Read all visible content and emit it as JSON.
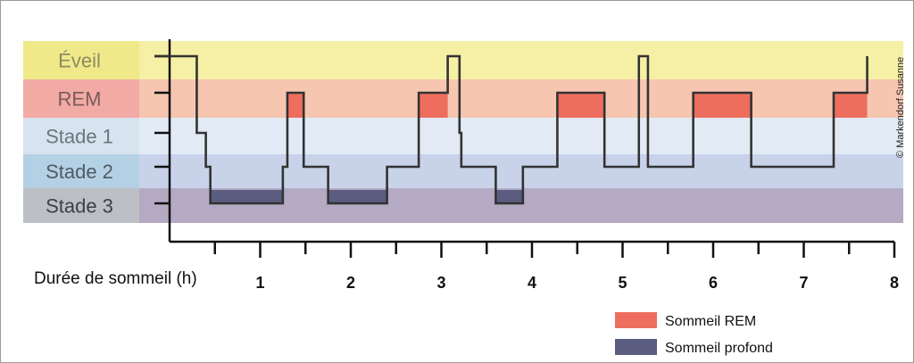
{
  "chart_data": {
    "type": "line",
    "xlabel": "Durée de sommeil (h)",
    "xlim": [
      0,
      8
    ],
    "x_ticks": [
      "1",
      "2",
      "3",
      "4",
      "5",
      "6",
      "7",
      "8"
    ],
    "stages": [
      {
        "key": "eveil",
        "label": "Éveil",
        "band_color": "#f5f0a6",
        "label_bg": "#efe98a",
        "label_color": "#8b8b62"
      },
      {
        "key": "rem",
        "label": "REM",
        "band_color": "#f6c6b0",
        "label_bg": "#f2aaa5",
        "label_color": "#7a5a58"
      },
      {
        "key": "stade1",
        "label": "Stade 1",
        "band_color": "#e2ebf5",
        "label_bg": "#d7e3ef",
        "label_color": "#6b7580"
      },
      {
        "key": "stade2",
        "label": "Stade 2",
        "band_color": "#c8d3ea",
        "label_bg": "#b4d0e4",
        "label_color": "#4f5b66"
      },
      {
        "key": "stade3",
        "label": "Stade 3",
        "band_color": "#b5aac3",
        "label_bg": "#bcc0c6",
        "label_color": "#3c3f44"
      }
    ],
    "hypnogram": [
      [
        -0.2,
        "eveil"
      ],
      [
        0.3,
        "stade1"
      ],
      [
        0.4,
        "stade2"
      ],
      [
        0.45,
        "stade3"
      ],
      [
        1.25,
        "stade2"
      ],
      [
        1.3,
        "rem"
      ],
      [
        1.48,
        "stade2"
      ],
      [
        1.75,
        "stade3"
      ],
      [
        2.4,
        "stade2"
      ],
      [
        2.75,
        "rem"
      ],
      [
        3.07,
        "eveil"
      ],
      [
        3.2,
        "stade1"
      ],
      [
        3.22,
        "stade2"
      ],
      [
        3.6,
        "stade3"
      ],
      [
        3.9,
        "stade2"
      ],
      [
        4.28,
        "rem"
      ],
      [
        4.8,
        "stade2"
      ],
      [
        5.18,
        "eveil"
      ],
      [
        5.28,
        "stade2"
      ],
      [
        5.78,
        "rem"
      ],
      [
        6.42,
        "stade2"
      ],
      [
        7.33,
        "rem"
      ],
      [
        7.7,
        "eveil"
      ]
    ],
    "hypnogram_end": 7.7,
    "rem_periods": [
      [
        1.3,
        1.48
      ],
      [
        2.75,
        3.07
      ],
      [
        4.28,
        4.8
      ],
      [
        5.78,
        6.42
      ],
      [
        7.33,
        7.7
      ]
    ],
    "deep_periods": [
      [
        0.45,
        1.25
      ],
      [
        1.75,
        2.4
      ],
      [
        3.6,
        3.9
      ]
    ],
    "legend": [
      {
        "label": "Sommeil REM",
        "color": "#ed6e5e"
      },
      {
        "label": "Sommeil profond",
        "color": "#5a5c80"
      }
    ],
    "grid": false
  },
  "credit": "© Markendorf Susanne"
}
